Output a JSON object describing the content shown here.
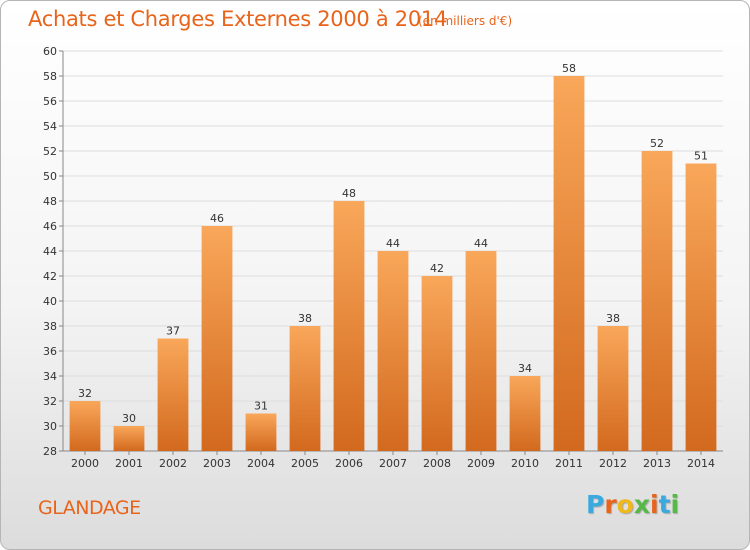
{
  "chart_data": {
    "type": "bar",
    "title": "Achats et Charges Externes 2000 à 2014",
    "subtitle": "(en milliers d'€)",
    "categories": [
      "2000",
      "2001",
      "2002",
      "2003",
      "2004",
      "2005",
      "2006",
      "2007",
      "2008",
      "2009",
      "2010",
      "2011",
      "2012",
      "2013",
      "2014"
    ],
    "values": [
      32,
      30,
      37,
      46,
      31,
      38,
      48,
      44,
      42,
      44,
      34,
      58,
      38,
      52,
      51
    ],
    "ylim": [
      28,
      60
    ],
    "yticks": [
      28,
      30,
      32,
      34,
      36,
      38,
      40,
      42,
      44,
      46,
      48,
      50,
      52,
      54,
      56,
      58,
      60
    ],
    "grid": true,
    "legend": "none",
    "bar_color_top": "#f9a75a",
    "bar_color_bottom": "#d2691e"
  },
  "location": "GLANDAGE",
  "brand": {
    "letters": [
      "P",
      "r",
      "o",
      "x",
      "i",
      "t",
      "i"
    ],
    "colors": [
      "#3aa9df",
      "#e8641b",
      "#f0b91b",
      "#56b947",
      "#e8641b",
      "#3aa9df",
      "#56b947"
    ]
  }
}
